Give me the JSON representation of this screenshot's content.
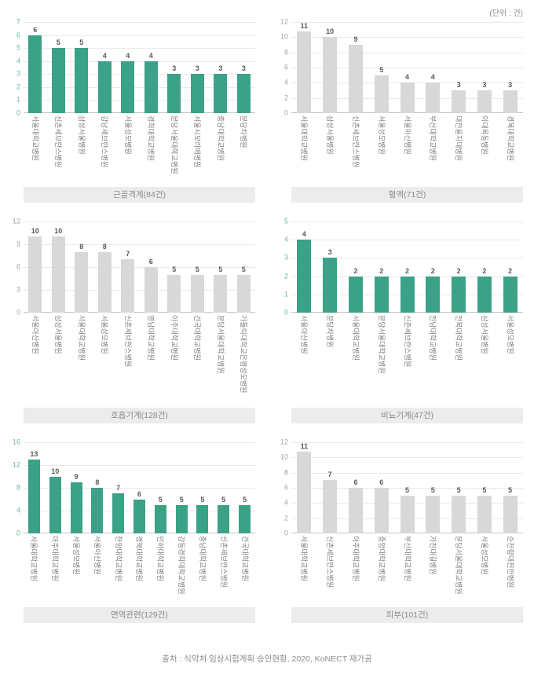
{
  "unit_note": "(단위 : 건)",
  "source": "출처 : 식약처 임상시험계획 승인현황, 2020, KoNECT 재가공",
  "colors": {
    "green_bar": "#3ba287",
    "gray_bar": "#d8d8d8",
    "green_tick": "#6fb7a2",
    "gray_tick": "#a6a6a6"
  },
  "chart_data": [
    {
      "type": "bar",
      "title": "근골격계(84건)",
      "theme": "green",
      "ymax": 7,
      "ystep": 1,
      "categories": [
        "서울대학교병원",
        "신촌세브란스병원",
        "삼성서울병원",
        "강남세브란스병원",
        "서울성모병원",
        "경희대학교병원",
        "분당서울대학교병원",
        "서울시보라매병원",
        "충남대학교병원",
        "분당차병원"
      ],
      "values": [
        6,
        5,
        5,
        4,
        4,
        4,
        3,
        3,
        3,
        3
      ]
    },
    {
      "type": "bar",
      "title": "혈액(71건)",
      "theme": "gray",
      "ymax": 12,
      "ystep": 2,
      "categories": [
        "서울대학교병원",
        "삼성서울병원",
        "신촌세브란스병원",
        "서울성모병원",
        "서울아산병원",
        "부산대학교병원",
        "대전을지대병원",
        "이대목동병원",
        "경북대학교병원"
      ],
      "values": [
        11,
        10,
        9,
        5,
        4,
        4,
        3,
        3,
        3
      ]
    },
    {
      "type": "bar",
      "title": "호흡기계(128건)",
      "theme": "gray",
      "ymax": 12,
      "ystep": 3,
      "categories": [
        "서울아산병원",
        "삼성서울병원",
        "서울대학교병원",
        "서울성모병원",
        "신촌세브란스병원",
        "영남대학교병원",
        "아주대학교병원",
        "건국대학교병원",
        "분당서울대학교병원",
        "가톨릭대학교은평성모병원"
      ],
      "values": [
        10,
        10,
        8,
        8,
        7,
        6,
        5,
        5,
        5,
        5
      ]
    },
    {
      "type": "bar",
      "title": "비뇨기계(47건)",
      "theme": "green",
      "ymax": 5,
      "ystep": 1,
      "categories": [
        "서울아산병원",
        "분당차병원",
        "서울대학교병원",
        "분당서울대학교병원",
        "신촌세브란스병원",
        "전남대학교병원",
        "전북대학교병원",
        "삼성서울병원",
        "서울성모병원"
      ],
      "values": [
        4,
        3,
        2,
        2,
        2,
        2,
        2,
        2,
        2
      ]
    },
    {
      "type": "bar",
      "title": "면역관련(129건)",
      "theme": "green",
      "ymax": 16,
      "ystep": 4,
      "categories": [
        "서울대학교병원",
        "아주대학교병원",
        "서울성모병원",
        "서울아산병원",
        "한양대학교병원",
        "경북대학교병원",
        "인하대학교병원",
        "강동경희대학교병원",
        "충남대학교병원",
        "신촌세브란스병원",
        "건국대학교병원"
      ],
      "values": [
        13,
        10,
        9,
        8,
        7,
        6,
        5,
        5,
        5,
        5,
        5
      ]
    },
    {
      "type": "bar",
      "title": "피부(101건)",
      "theme": "gray",
      "ymax": 12,
      "ystep": 2,
      "categories": [
        "서울대학교병원",
        "신촌세브란스병원",
        "아주대학교병원",
        "중앙대학교병원",
        "부산대학교병원",
        "가천대길병원",
        "분당서울대학교병원",
        "서울성모병원",
        "순천향대천안병원"
      ],
      "values": [
        11,
        7,
        6,
        6,
        5,
        5,
        5,
        5,
        5
      ]
    }
  ]
}
